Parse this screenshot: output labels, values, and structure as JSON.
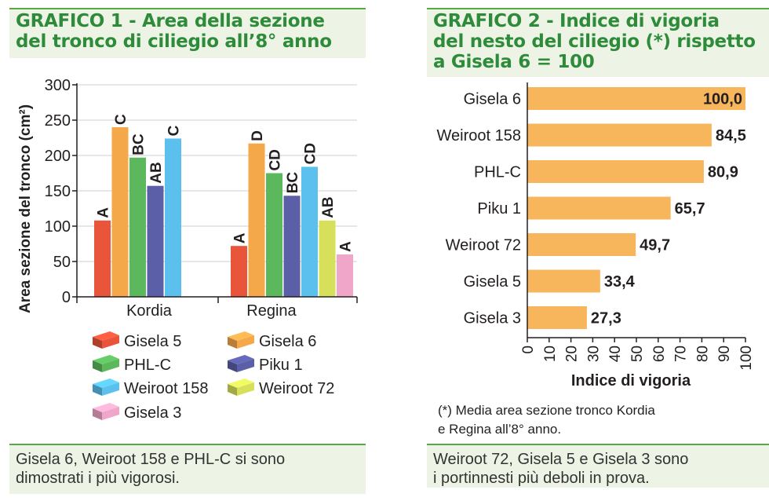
{
  "charts": {
    "chart1": {
      "title_line1": "GRAFICO 1 - Area della sezione",
      "title_line2": "del tronco di ciliegio all’8° anno",
      "caption_line1": "Gisela 6, Weiroot 158 e PHL-C si sono",
      "caption_line2": "dimostrati i più vigorosi."
    },
    "chart2": {
      "title_line1": "GRAFICO 2 - Indice di vigoria",
      "title_line2": "del nesto del ciliegio (*) rispetto",
      "title_line3": "a Gisela 6 = 100",
      "footnote_line1": "(*) Media area sezione tronco Kordia",
      "footnote_line2": "e Regina all’8° anno.",
      "caption_line1": "Weiroot 72, Gisela 5 e Gisela 3 sono",
      "caption_line2": "i portinnesti più deboli in prova."
    }
  },
  "chart_data": [
    {
      "type": "bar",
      "title": "GRAFICO 1 - Area della sezione del tronco di ciliegio all’8° anno",
      "ylabel": "Area sezione del tronco (cm²)",
      "xlabel": "",
      "ylim": [
        0,
        300
      ],
      "yticks": [
        0,
        50,
        100,
        150,
        200,
        250,
        300
      ],
      "categories": [
        "Kordia",
        "Regina"
      ],
      "series": [
        {
          "name": "Gisela 5",
          "color": "#e8553b",
          "values": [
            108,
            72
          ],
          "letters": [
            "A",
            "A"
          ]
        },
        {
          "name": "Gisela 6",
          "color": "#f5a84a",
          "values": [
            240,
            217
          ],
          "letters": [
            "C",
            "D"
          ]
        },
        {
          "name": "PHL-C",
          "color": "#5cb85c",
          "values": [
            197,
            175
          ],
          "letters": [
            "BC",
            "CD"
          ]
        },
        {
          "name": "Piku 1",
          "color": "#5a5fa8",
          "values": [
            157,
            143
          ],
          "letters": [
            "AB",
            "BC"
          ]
        },
        {
          "name": "Weiroot 158",
          "color": "#5bc0ee",
          "values": [
            224,
            184
          ],
          "letters": [
            "C",
            "CD"
          ]
        },
        {
          "name": "Weiroot 72",
          "color": "#d7e05a",
          "values": [
            null,
            108
          ],
          "letters": [
            null,
            "AB"
          ]
        },
        {
          "name": "Gisela 3",
          "color": "#f0a6c8",
          "values": [
            null,
            60
          ],
          "letters": [
            null,
            "A"
          ]
        }
      ],
      "legend": [
        "Gisela 5",
        "Gisela 6",
        "PHL-C",
        "Piku 1",
        "Weiroot 158",
        "Weiroot 72",
        "Gisela 3"
      ]
    },
    {
      "type": "bar",
      "orientation": "horizontal",
      "title": "GRAFICO 2 - Indice di vigoria del nesto del ciliegio (*) rispetto a Gisela 6 = 100",
      "xlabel": "Indice di vigoria",
      "ylabel": "",
      "xlim": [
        0,
        100
      ],
      "xticks": [
        0,
        10,
        20,
        30,
        40,
        50,
        60,
        70,
        80,
        90,
        100
      ],
      "color": "#f7b55c",
      "categories": [
        "Gisela 6",
        "Weiroot 158",
        "PHL-C",
        "Piku 1",
        "Weiroot 72",
        "Gisela 5",
        "Gisela 3"
      ],
      "values": [
        100.0,
        84.5,
        80.9,
        65.7,
        49.7,
        33.4,
        27.3
      ],
      "value_labels": [
        "100,0",
        "84,5",
        "80,9",
        "65,7",
        "49,7",
        "33,4",
        "27,3"
      ]
    }
  ]
}
